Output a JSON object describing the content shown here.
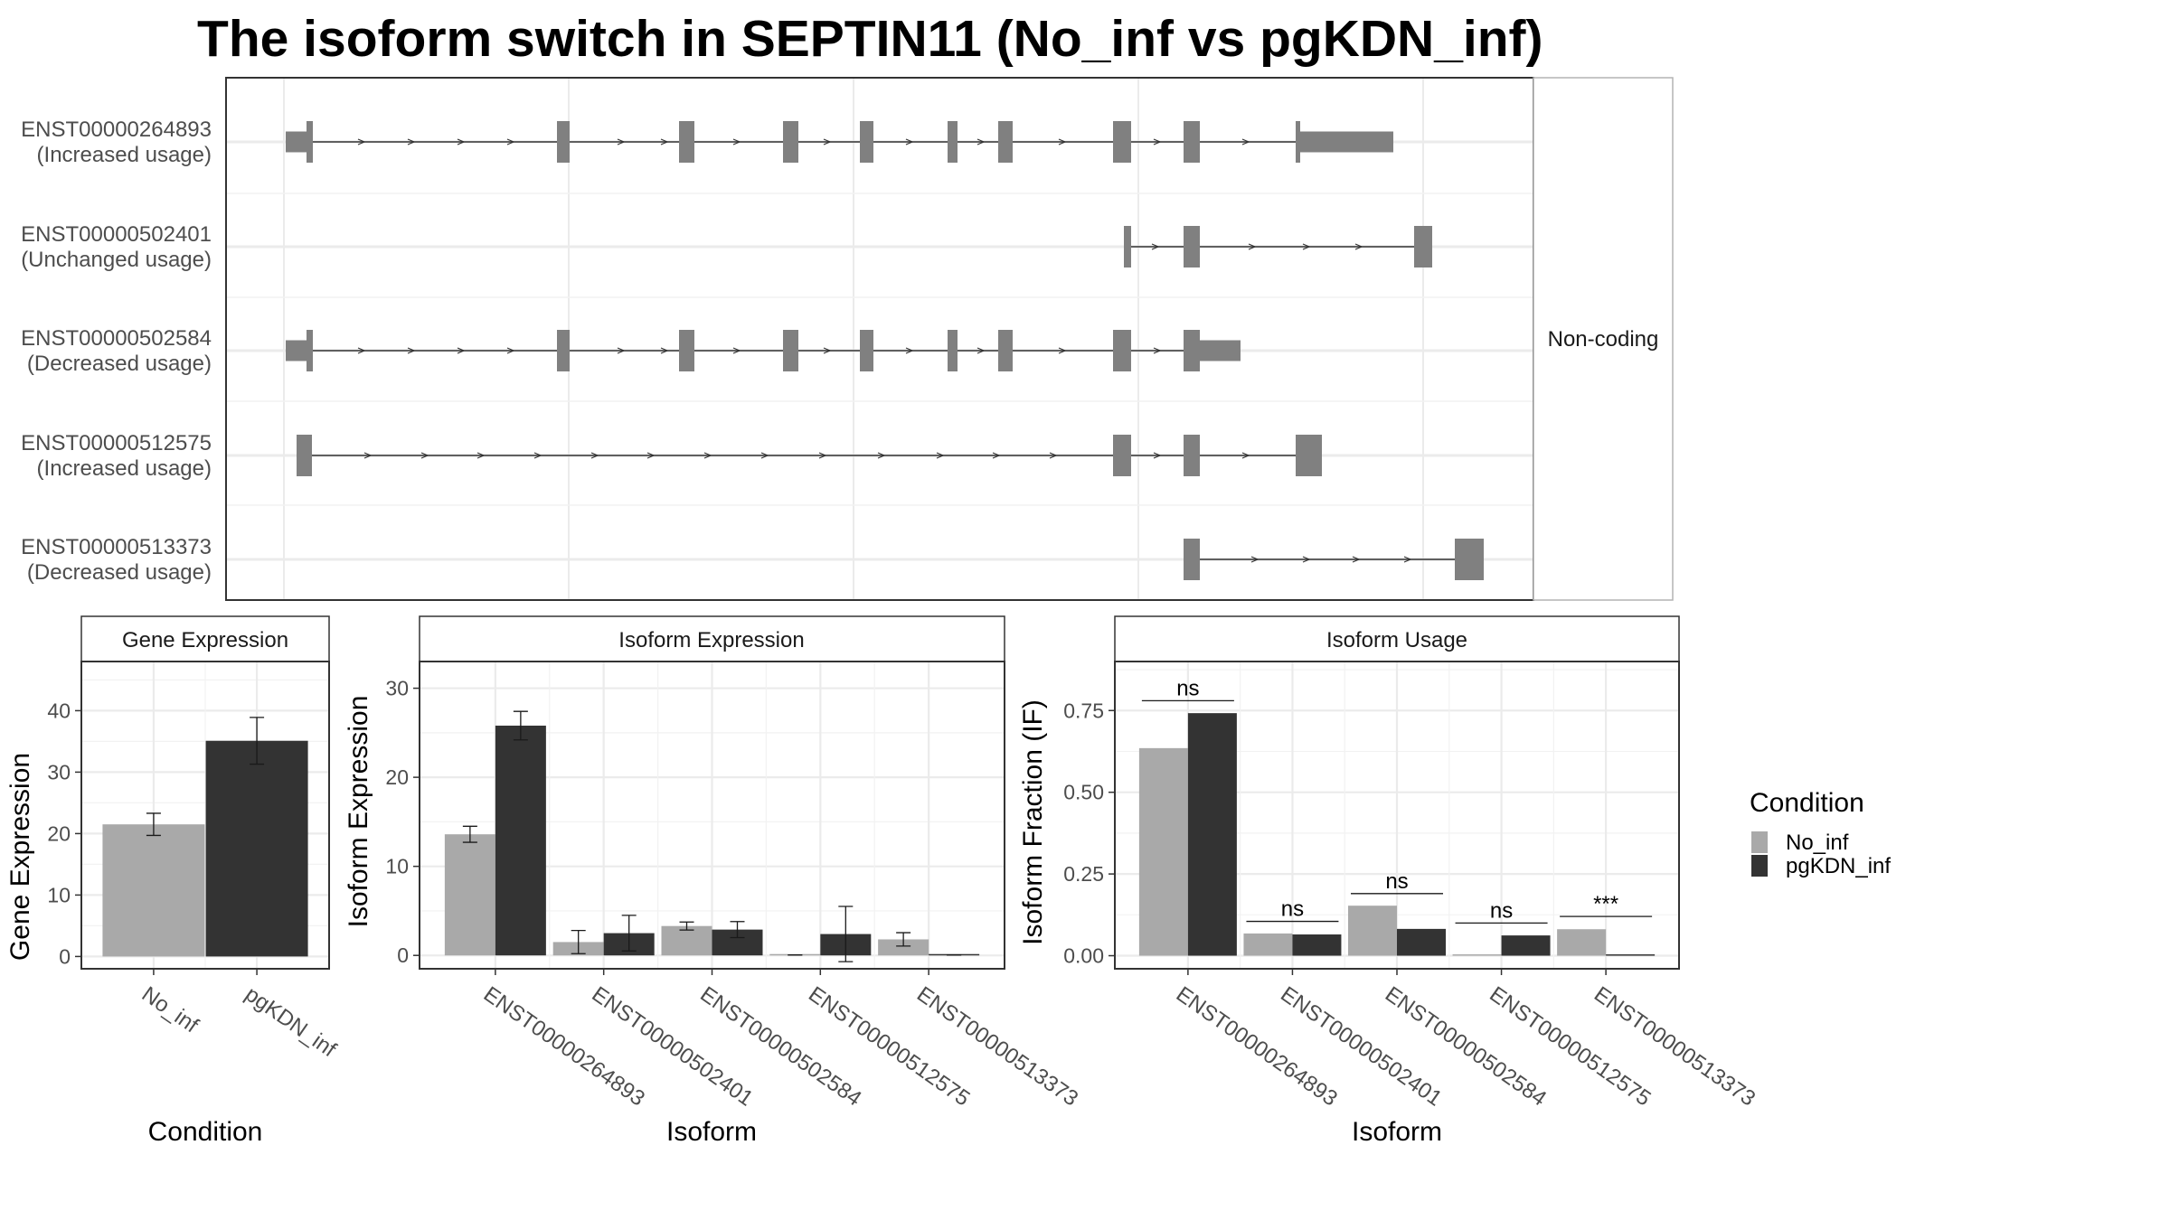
{
  "title": "The isoform switch in SEPTIN11 (No_inf vs pgKDN_inf)",
  "colors": {
    "No_inf": "#a9a9a9",
    "pgKDN_inf": "#333333",
    "exon": "#808080",
    "grid": "#ebebeb",
    "panel_border": "#333333",
    "strip_border": "#b3b3b3",
    "text": "#4d4d4d"
  },
  "legend": {
    "title": "Condition",
    "items": [
      "No_inf",
      "pgKDN_inf"
    ]
  },
  "structure": {
    "facet_label": "Non-coding",
    "transcripts": [
      {
        "id": "ENST00000264893",
        "usage": "(Increased usage)"
      },
      {
        "id": "ENST00000502401",
        "usage": "(Unchanged usage)"
      },
      {
        "id": "ENST00000502584",
        "usage": "(Decreased usage)"
      },
      {
        "id": "ENST00000512575",
        "usage": "(Increased usage)"
      },
      {
        "id": "ENST00000513373",
        "usage": "(Decreased usage)"
      }
    ]
  },
  "chart_data": [
    {
      "type": "bar",
      "panel": "Gene Expression",
      "strip": "Gene Expression",
      "xlabel": "Condition",
      "ylabel": "Gene Expression",
      "categories": [
        "No_inf",
        "pgKDN_inf"
      ],
      "series": [
        {
          "name": "No_inf",
          "values": [
            21.5,
            null
          ],
          "err": [
            1.8,
            null
          ]
        },
        {
          "name": "pgKDN_inf",
          "values": [
            null,
            35.1
          ],
          "err": [
            null,
            3.8
          ]
        }
      ],
      "ylim": [
        -2,
        48
      ],
      "yticks": [
        0,
        10,
        20,
        30,
        40
      ],
      "grid": true
    },
    {
      "type": "bar",
      "panel": "Isoform Expression",
      "strip": "Isoform Expression",
      "xlabel": "Isoform",
      "ylabel": "Isoform Expression",
      "categories": [
        "ENST00000264893",
        "ENST00000502401",
        "ENST00000502584",
        "ENST00000512575",
        "ENST00000513373"
      ],
      "series": [
        {
          "name": "No_inf",
          "values": [
            13.6,
            1.5,
            3.3,
            0.05,
            1.8
          ],
          "err": [
            0.9,
            1.3,
            0.45,
            0,
            0.75
          ]
        },
        {
          "name": "pgKDN_inf",
          "values": [
            25.8,
            2.5,
            2.9,
            2.4,
            0.05
          ],
          "err": [
            1.6,
            2.0,
            0.9,
            3.1,
            0
          ]
        }
      ],
      "ylim": [
        -1.5,
        33
      ],
      "yticks": [
        0,
        10,
        20,
        30
      ],
      "grid": true
    },
    {
      "type": "bar",
      "panel": "Isoform Usage",
      "strip": "Isoform Usage",
      "xlabel": "Isoform",
      "ylabel": "Isoform Fraction (IF)",
      "categories": [
        "ENST00000264893",
        "ENST00000502401",
        "ENST00000502584",
        "ENST00000512575",
        "ENST00000513373"
      ],
      "series": [
        {
          "name": "No_inf",
          "values": [
            0.635,
            0.068,
            0.153,
            0.0,
            0.081
          ]
        },
        {
          "name": "pgKDN_inf",
          "values": [
            0.742,
            0.065,
            0.082,
            0.062,
            0.0
          ]
        }
      ],
      "significance": [
        "ns",
        "ns",
        "ns",
        "ns",
        "***"
      ],
      "sig_y": [
        0.78,
        0.105,
        0.19,
        0.1,
        0.12
      ],
      "ylim": [
        -0.04,
        0.9
      ],
      "yticks": [
        0.0,
        0.25,
        0.5,
        0.75
      ],
      "yticklabels": [
        "0.00",
        "0.25",
        "0.50",
        "0.75"
      ],
      "grid": true
    }
  ]
}
